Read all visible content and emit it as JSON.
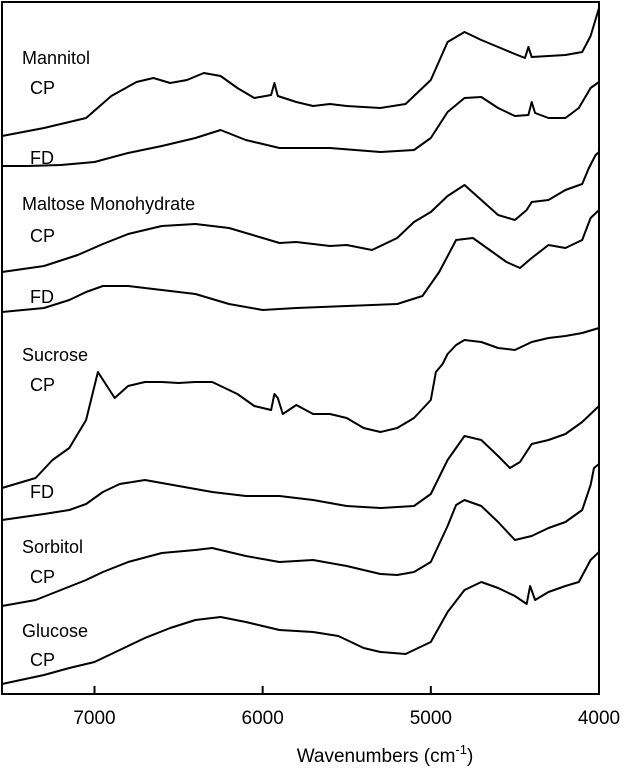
{
  "chart_data": {
    "type": "line",
    "xlabel": "Wavenumbers (cm",
    "xlabel_sup": "-1",
    "xlabel_end": ")",
    "xlim": [
      7550,
      4000
    ],
    "x_reversed": true,
    "xticks": [
      7000,
      6000,
      5000,
      4000
    ],
    "xtick_labels": [
      "7000",
      "6000",
      "5000",
      "4000"
    ],
    "yticks_shown": false,
    "grid": false,
    "y_offset_stacked": true,
    "labels": [
      {
        "text": "Mannitol",
        "row": 0
      },
      {
        "text": "CP",
        "row": 1
      },
      {
        "text": "FD",
        "row": 2
      },
      {
        "text": "Maltose Monohydrate",
        "row": 3
      },
      {
        "text": "CP",
        "row": 4
      },
      {
        "text": "FD",
        "row": 5
      },
      {
        "text": "Sucrose",
        "row": 6
      },
      {
        "text": "CP",
        "row": 7
      },
      {
        "text": "FD",
        "row": 8
      },
      {
        "text": "Sorbitol",
        "row": 9
      },
      {
        "text": "CP",
        "row": 10
      },
      {
        "text": "Glucose",
        "row": 11
      },
      {
        "text": "CP",
        "row": 12
      }
    ],
    "series": [
      {
        "sample": "Mannitol CP",
        "points": [
          [
            7550,
            136
          ],
          [
            7300,
            128
          ],
          [
            7050,
            118
          ],
          [
            6900,
            96
          ],
          [
            6750,
            82
          ],
          [
            6650,
            78
          ],
          [
            6550,
            83
          ],
          [
            6450,
            80
          ],
          [
            6350,
            73
          ],
          [
            6250,
            76
          ],
          [
            6150,
            88
          ],
          [
            6050,
            98
          ],
          [
            5950,
            95
          ],
          [
            5930,
            83
          ],
          [
            5910,
            96
          ],
          [
            5800,
            102
          ],
          [
            5700,
            106
          ],
          [
            5600,
            104
          ],
          [
            5500,
            106
          ],
          [
            5300,
            108
          ],
          [
            5150,
            104
          ],
          [
            5000,
            80
          ],
          [
            4900,
            42
          ],
          [
            4800,
            32
          ],
          [
            4700,
            40
          ],
          [
            4600,
            47
          ],
          [
            4500,
            54
          ],
          [
            4440,
            58
          ],
          [
            4420,
            47
          ],
          [
            4400,
            57
          ],
          [
            4300,
            56
          ],
          [
            4200,
            55
          ],
          [
            4100,
            52
          ],
          [
            4050,
            36
          ],
          [
            4000,
            8
          ]
        ]
      },
      {
        "sample": "Mannitol FD",
        "points": [
          [
            7550,
            166
          ],
          [
            7400,
            166
          ],
          [
            7200,
            165
          ],
          [
            7000,
            162
          ],
          [
            6800,
            153
          ],
          [
            6600,
            146
          ],
          [
            6400,
            138
          ],
          [
            6250,
            130
          ],
          [
            6100,
            140
          ],
          [
            5900,
            148
          ],
          [
            5600,
            148
          ],
          [
            5300,
            152
          ],
          [
            5100,
            150
          ],
          [
            5000,
            138
          ],
          [
            4900,
            112
          ],
          [
            4800,
            98
          ],
          [
            4700,
            97
          ],
          [
            4600,
            108
          ],
          [
            4500,
            116
          ],
          [
            4420,
            115
          ],
          [
            4400,
            102
          ],
          [
            4380,
            113
          ],
          [
            4300,
            118
          ],
          [
            4200,
            118
          ],
          [
            4120,
            108
          ],
          [
            4050,
            88
          ],
          [
            4000,
            82
          ]
        ]
      },
      {
        "sample": "Maltose Monohydrate CP",
        "points": [
          [
            7550,
            272
          ],
          [
            7300,
            266
          ],
          [
            7100,
            255
          ],
          [
            6950,
            244
          ],
          [
            6800,
            234
          ],
          [
            6600,
            226
          ],
          [
            6400,
            224
          ],
          [
            6200,
            228
          ],
          [
            6000,
            238
          ],
          [
            5900,
            243
          ],
          [
            5800,
            242
          ],
          [
            5700,
            244
          ],
          [
            5600,
            246
          ],
          [
            5500,
            245
          ],
          [
            5350,
            250
          ],
          [
            5200,
            238
          ],
          [
            5100,
            222
          ],
          [
            5000,
            212
          ],
          [
            4900,
            196
          ],
          [
            4800,
            185
          ],
          [
            4700,
            200
          ],
          [
            4600,
            215
          ],
          [
            4500,
            220
          ],
          [
            4430,
            210
          ],
          [
            4400,
            202
          ],
          [
            4300,
            200
          ],
          [
            4200,
            190
          ],
          [
            4100,
            184
          ],
          [
            4060,
            168
          ],
          [
            4020,
            155
          ],
          [
            4000,
            152
          ]
        ]
      },
      {
        "sample": "Maltose Monohydrate FD",
        "points": [
          [
            7550,
            312
          ],
          [
            7300,
            308
          ],
          [
            7150,
            300
          ],
          [
            7050,
            292
          ],
          [
            6950,
            286
          ],
          [
            6800,
            286
          ],
          [
            6600,
            290
          ],
          [
            6400,
            294
          ],
          [
            6200,
            304
          ],
          [
            6000,
            310
          ],
          [
            5800,
            308
          ],
          [
            5500,
            306
          ],
          [
            5200,
            304
          ],
          [
            5050,
            296
          ],
          [
            4950,
            272
          ],
          [
            4850,
            240
          ],
          [
            4750,
            238
          ],
          [
            4650,
            250
          ],
          [
            4550,
            262
          ],
          [
            4470,
            268
          ],
          [
            4400,
            258
          ],
          [
            4300,
            245
          ],
          [
            4200,
            248
          ],
          [
            4100,
            240
          ],
          [
            4050,
            218
          ],
          [
            4000,
            210
          ]
        ]
      },
      {
        "sample": "Sucrose CP",
        "points": [
          [
            7550,
            488
          ],
          [
            7350,
            478
          ],
          [
            7250,
            460
          ],
          [
            7150,
            448
          ],
          [
            7050,
            420
          ],
          [
            6980,
            372
          ],
          [
            6930,
            385
          ],
          [
            6880,
            398
          ],
          [
            6800,
            386
          ],
          [
            6700,
            382
          ],
          [
            6600,
            382
          ],
          [
            6500,
            383
          ],
          [
            6400,
            382
          ],
          [
            6300,
            382
          ],
          [
            6150,
            394
          ],
          [
            6050,
            406
          ],
          [
            5950,
            410
          ],
          [
            5930,
            394
          ],
          [
            5910,
            398
          ],
          [
            5880,
            414
          ],
          [
            5800,
            405
          ],
          [
            5700,
            414
          ],
          [
            5600,
            414
          ],
          [
            5500,
            418
          ],
          [
            5400,
            428
          ],
          [
            5300,
            432
          ],
          [
            5200,
            428
          ],
          [
            5100,
            418
          ],
          [
            5000,
            400
          ],
          [
            4970,
            372
          ],
          [
            4930,
            364
          ],
          [
            4900,
            354
          ],
          [
            4850,
            345
          ],
          [
            4800,
            340
          ],
          [
            4700,
            342
          ],
          [
            4600,
            348
          ],
          [
            4500,
            350
          ],
          [
            4400,
            342
          ],
          [
            4300,
            338
          ],
          [
            4200,
            336
          ],
          [
            4100,
            333
          ],
          [
            4000,
            328
          ]
        ]
      },
      {
        "sample": "Sucrose FD",
        "points": [
          [
            7550,
            520
          ],
          [
            7300,
            514
          ],
          [
            7150,
            510
          ],
          [
            7050,
            504
          ],
          [
            6950,
            492
          ],
          [
            6850,
            484
          ],
          [
            6700,
            480
          ],
          [
            6500,
            486
          ],
          [
            6300,
            492
          ],
          [
            6100,
            496
          ],
          [
            5900,
            496
          ],
          [
            5700,
            500
          ],
          [
            5500,
            506
          ],
          [
            5300,
            508
          ],
          [
            5100,
            506
          ],
          [
            5000,
            494
          ],
          [
            4900,
            460
          ],
          [
            4800,
            436
          ],
          [
            4700,
            440
          ],
          [
            4600,
            456
          ],
          [
            4530,
            468
          ],
          [
            4470,
            462
          ],
          [
            4400,
            444
          ],
          [
            4300,
            440
          ],
          [
            4200,
            434
          ],
          [
            4100,
            422
          ],
          [
            4050,
            414
          ],
          [
            4000,
            406
          ]
        ]
      },
      {
        "sample": "Sorbitol CP",
        "points": [
          [
            7550,
            606
          ],
          [
            7350,
            600
          ],
          [
            7200,
            590
          ],
          [
            7050,
            580
          ],
          [
            6950,
            572
          ],
          [
            6800,
            562
          ],
          [
            6600,
            553
          ],
          [
            6400,
            550
          ],
          [
            6300,
            548
          ],
          [
            6100,
            556
          ],
          [
            5900,
            562
          ],
          [
            5700,
            560
          ],
          [
            5500,
            566
          ],
          [
            5300,
            574
          ],
          [
            5200,
            575
          ],
          [
            5100,
            572
          ],
          [
            5000,
            562
          ],
          [
            4900,
            526
          ],
          [
            4850,
            505
          ],
          [
            4800,
            500
          ],
          [
            4700,
            506
          ],
          [
            4600,
            522
          ],
          [
            4500,
            540
          ],
          [
            4400,
            536
          ],
          [
            4300,
            528
          ],
          [
            4200,
            522
          ],
          [
            4100,
            510
          ],
          [
            4050,
            485
          ],
          [
            4030,
            468
          ],
          [
            4000,
            464
          ]
        ]
      },
      {
        "sample": "Glucose CP",
        "points": [
          [
            7550,
            684
          ],
          [
            7300,
            675
          ],
          [
            7150,
            668
          ],
          [
            7000,
            662
          ],
          [
            6850,
            650
          ],
          [
            6700,
            638
          ],
          [
            6550,
            628
          ],
          [
            6400,
            620
          ],
          [
            6250,
            617
          ],
          [
            6100,
            622
          ],
          [
            5900,
            630
          ],
          [
            5700,
            632
          ],
          [
            5550,
            636
          ],
          [
            5400,
            648
          ],
          [
            5300,
            652
          ],
          [
            5150,
            654
          ],
          [
            5000,
            642
          ],
          [
            4900,
            612
          ],
          [
            4800,
            590
          ],
          [
            4700,
            582
          ],
          [
            4600,
            588
          ],
          [
            4500,
            596
          ],
          [
            4430,
            604
          ],
          [
            4410,
            586
          ],
          [
            4380,
            600
          ],
          [
            4300,
            592
          ],
          [
            4200,
            586
          ],
          [
            4120,
            582
          ],
          [
            4050,
            560
          ],
          [
            4000,
            552
          ]
        ]
      }
    ]
  }
}
